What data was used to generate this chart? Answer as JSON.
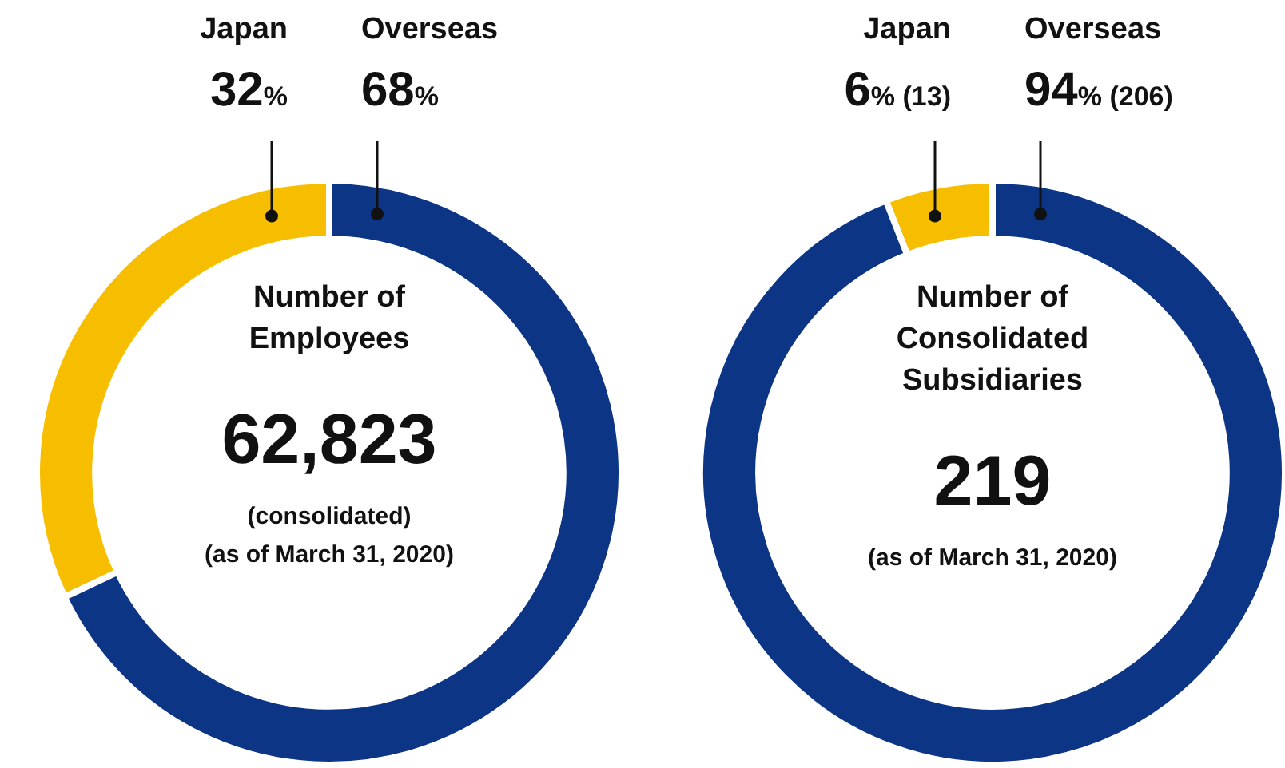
{
  "chart_data": [
    {
      "type": "donut",
      "title": "Number of Employees",
      "categories": [
        "Japan",
        "Overseas"
      ],
      "values": [
        32,
        68
      ],
      "colors": [
        "#f7be00",
        "#0c3586"
      ],
      "value_labels": [
        "32%",
        "68%"
      ],
      "annotations": [
        "62,823",
        "(consolidated)",
        "(as of March 31, 2020)"
      ]
    },
    {
      "type": "donut",
      "title": "Number of Consolidated Subsidiaries",
      "categories": [
        "Japan",
        "Overseas"
      ],
      "values": [
        13,
        206
      ],
      "colors": [
        "#f7be00",
        "#0c3586"
      ],
      "value_labels": [
        "6% (13)",
        "94% (206)"
      ],
      "annotations": [
        "219",
        "(as of March 31, 2020)"
      ]
    }
  ]
}
